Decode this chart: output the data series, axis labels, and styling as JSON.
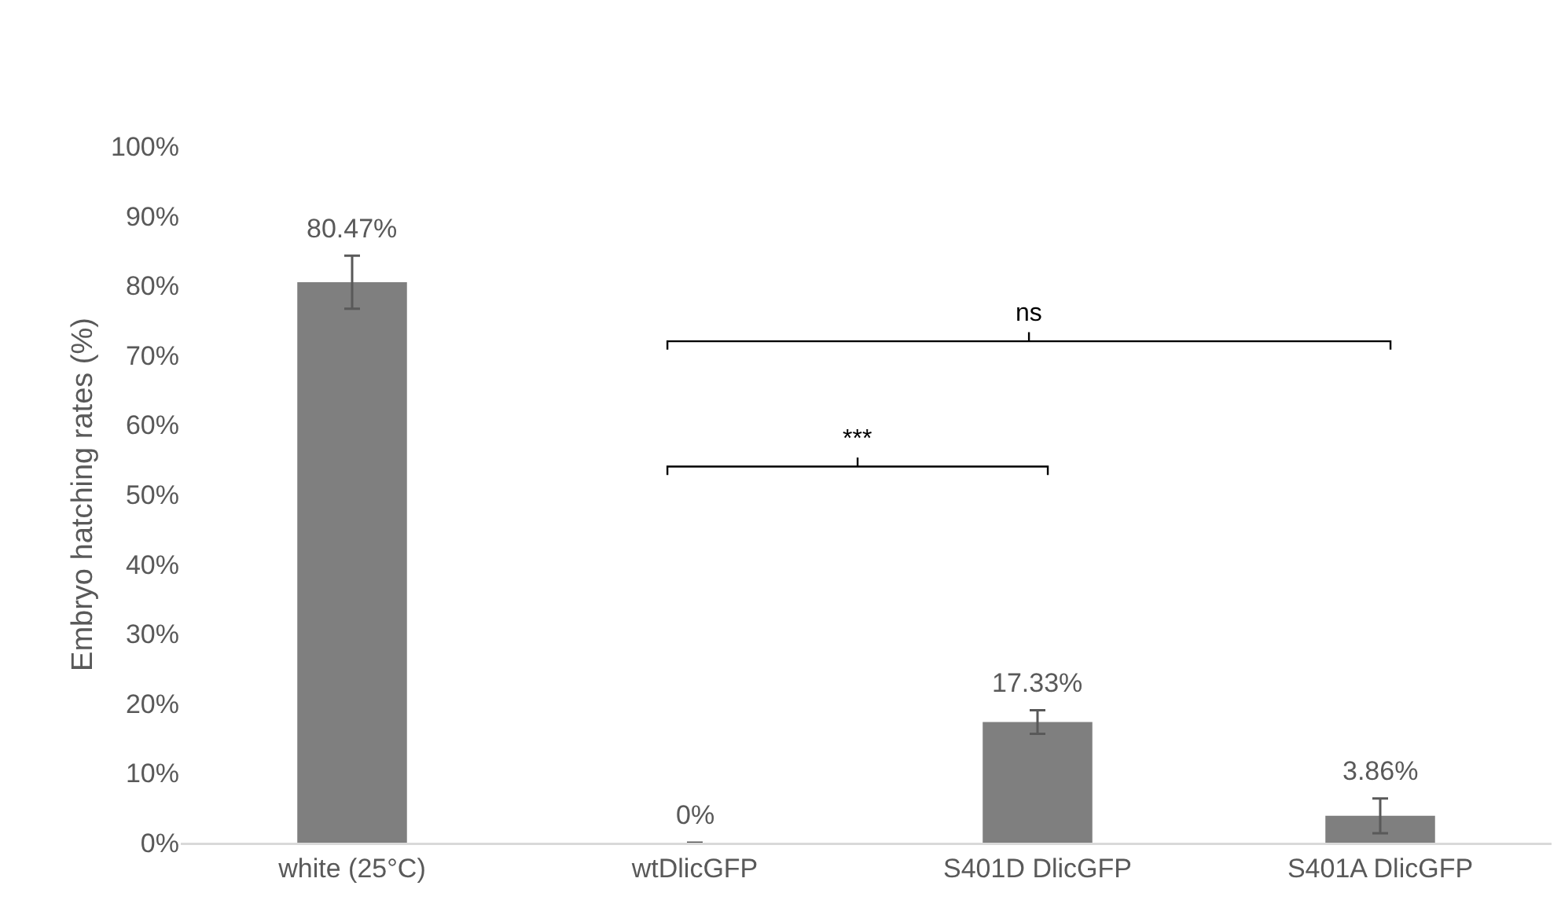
{
  "chart_data": {
    "type": "bar",
    "ylabel": "Embryo hatching rates (%)",
    "categories": [
      "white (25°C)",
      "wtDlicGFP",
      "S401D DlicGFP",
      "S401A DlicGFP"
    ],
    "values": [
      80.47,
      0,
      17.33,
      3.86
    ],
    "value_labels": [
      "80.47%",
      "0%",
      "17.33%",
      "3.86%"
    ],
    "errors": [
      3.8,
      null,
      1.7,
      2.5
    ],
    "color": "#7f7f7f",
    "ylim": [
      0,
      100
    ],
    "yticks": [
      {
        "value": 0,
        "label": "0%"
      },
      {
        "value": 10,
        "label": "10%"
      },
      {
        "value": 20,
        "label": "20%"
      },
      {
        "value": 30,
        "label": "30%"
      },
      {
        "value": 40,
        "label": "40%"
      },
      {
        "value": 50,
        "label": "50%"
      },
      {
        "value": 60,
        "label": "60%"
      },
      {
        "value": 70,
        "label": "70%"
      },
      {
        "value": 80,
        "label": "80%"
      },
      {
        "value": 90,
        "label": "90%"
      },
      {
        "value": 100,
        "label": "100%"
      }
    ],
    "grid": false,
    "annotations": [
      "***",
      "ns"
    ]
  }
}
